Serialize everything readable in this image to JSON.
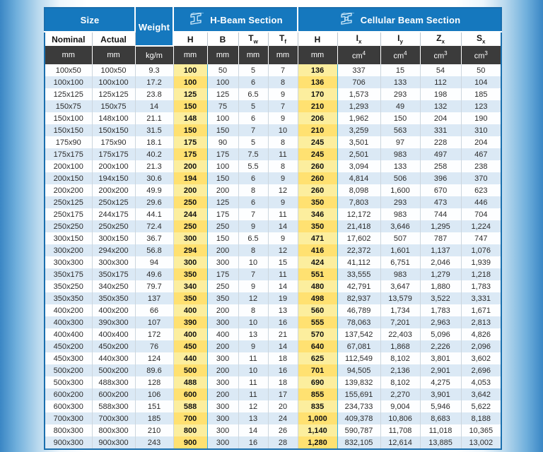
{
  "header": {
    "size_label": "Size",
    "weight_label": "Weight",
    "hbeam_label": "H-Beam Section",
    "cellular_label": "Cellular Beam Section",
    "hbeam_icon": "h-beam-icon",
    "cellular_icon": "cellular-beam-icon"
  },
  "columns": [
    {
      "id": "nominal",
      "label": "Nominal",
      "unit": "mm",
      "group": "size"
    },
    {
      "id": "actual",
      "label": "Actual",
      "unit": "mm",
      "group": "size"
    },
    {
      "id": "weight",
      "label": "Weight",
      "unit": "kg/m",
      "group": "weight"
    },
    {
      "id": "h_beam_h",
      "label": "H",
      "unit": "mm",
      "group": "hbeam",
      "highlight": true
    },
    {
      "id": "b",
      "label": "B",
      "unit": "mm",
      "group": "hbeam"
    },
    {
      "id": "tw",
      "label": "T",
      "sub": "w",
      "unit": "mm",
      "group": "hbeam"
    },
    {
      "id": "tf",
      "label": "T",
      "sub": "f",
      "unit": "mm",
      "group": "hbeam"
    },
    {
      "id": "cell_h",
      "label": "H",
      "unit": "mm",
      "group": "cellular",
      "highlight": true
    },
    {
      "id": "ix",
      "label": "I",
      "sub": "x",
      "unit": "cm",
      "unit_sup": "4",
      "group": "cellular"
    },
    {
      "id": "iy",
      "label": "I",
      "sub": "y",
      "unit": "cm",
      "unit_sup": "4",
      "group": "cellular"
    },
    {
      "id": "zx",
      "label": "Z",
      "sub": "x",
      "unit": "cm",
      "unit_sup": "3",
      "group": "cellular"
    },
    {
      "id": "sx",
      "label": "S",
      "sub": "x",
      "unit": "cm",
      "unit_sup": "3",
      "group": "cellular"
    }
  ],
  "rows": [
    [
      "100x50",
      "100x50",
      "9.3",
      "100",
      "50",
      "5",
      "7",
      "136",
      "337",
      "15",
      "54",
      "50"
    ],
    [
      "100x100",
      "100x100",
      "17.2",
      "100",
      "100",
      "6",
      "8",
      "136",
      "706",
      "133",
      "112",
      "104"
    ],
    [
      "125x125",
      "125x125",
      "23.8",
      "125",
      "125",
      "6.5",
      "9",
      "170",
      "1,573",
      "293",
      "198",
      "185"
    ],
    [
      "150x75",
      "150x75",
      "14",
      "150",
      "75",
      "5",
      "7",
      "210",
      "1,293",
      "49",
      "132",
      "123"
    ],
    [
      "150x100",
      "148x100",
      "21.1",
      "148",
      "100",
      "6",
      "9",
      "206",
      "1,962",
      "150",
      "204",
      "190"
    ],
    [
      "150x150",
      "150x150",
      "31.5",
      "150",
      "150",
      "7",
      "10",
      "210",
      "3,259",
      "563",
      "331",
      "310"
    ],
    [
      "175x90",
      "175x90",
      "18.1",
      "175",
      "90",
      "5",
      "8",
      "245",
      "3,501",
      "97",
      "228",
      "204"
    ],
    [
      "175x175",
      "175x175",
      "40.2",
      "175",
      "175",
      "7.5",
      "11",
      "245",
      "2,501",
      "983",
      "497",
      "467"
    ],
    [
      "200x100",
      "200x100",
      "21.3",
      "200",
      "100",
      "5.5",
      "8",
      "260",
      "3,094",
      "133",
      "258",
      "238"
    ],
    [
      "200x150",
      "194x150",
      "30.6",
      "194",
      "150",
      "6",
      "9",
      "260",
      "4,814",
      "506",
      "396",
      "370"
    ],
    [
      "200x200",
      "200x200",
      "49.9",
      "200",
      "200",
      "8",
      "12",
      "260",
      "8,098",
      "1,600",
      "670",
      "623"
    ],
    [
      "250x125",
      "250x125",
      "29.6",
      "250",
      "125",
      "6",
      "9",
      "350",
      "7,803",
      "293",
      "473",
      "446"
    ],
    [
      "250x175",
      "244x175",
      "44.1",
      "244",
      "175",
      "7",
      "11",
      "346",
      "12,172",
      "983",
      "744",
      "704"
    ],
    [
      "250x250",
      "250x250",
      "72.4",
      "250",
      "250",
      "9",
      "14",
      "350",
      "21,418",
      "3,646",
      "1,295",
      "1,224"
    ],
    [
      "300x150",
      "300x150",
      "36.7",
      "300",
      "150",
      "6.5",
      "9",
      "471",
      "17,602",
      "507",
      "787",
      "747"
    ],
    [
      "300x200",
      "294x200",
      "56.8",
      "294",
      "200",
      "8",
      "12",
      "416",
      "22,372",
      "1,601",
      "1,137",
      "1,076"
    ],
    [
      "300x300",
      "300x300",
      "94",
      "300",
      "300",
      "10",
      "15",
      "424",
      "41,112",
      "6,751",
      "2,046",
      "1,939"
    ],
    [
      "350x175",
      "350x175",
      "49.6",
      "350",
      "175",
      "7",
      "11",
      "551",
      "33,555",
      "983",
      "1,279",
      "1,218"
    ],
    [
      "350x250",
      "340x250",
      "79.7",
      "340",
      "250",
      "9",
      "14",
      "480",
      "42,791",
      "3,647",
      "1,880",
      "1,783"
    ],
    [
      "350x350",
      "350x350",
      "137",
      "350",
      "350",
      "12",
      "19",
      "498",
      "82,937",
      "13,579",
      "3,522",
      "3,331"
    ],
    [
      "400x200",
      "400x200",
      "66",
      "400",
      "200",
      "8",
      "13",
      "560",
      "46,789",
      "1,734",
      "1,783",
      "1,671"
    ],
    [
      "400x300",
      "390x300",
      "107",
      "390",
      "300",
      "10",
      "16",
      "555",
      "78,063",
      "7,201",
      "2,963",
      "2,813"
    ],
    [
      "400x400",
      "400x400",
      "172",
      "400",
      "400",
      "13",
      "21",
      "570",
      "137,542",
      "22,403",
      "5,096",
      "4,826"
    ],
    [
      "450x200",
      "450x200",
      "76",
      "450",
      "200",
      "9",
      "14",
      "640",
      "67,081",
      "1,868",
      "2,226",
      "2,096"
    ],
    [
      "450x300",
      "440x300",
      "124",
      "440",
      "300",
      "11",
      "18",
      "625",
      "112,549",
      "8,102",
      "3,801",
      "3,602"
    ],
    [
      "500x200",
      "500x200",
      "89.6",
      "500",
      "200",
      "10",
      "16",
      "701",
      "94,505",
      "2,136",
      "2,901",
      "2,696"
    ],
    [
      "500x300",
      "488x300",
      "128",
      "488",
      "300",
      "11",
      "18",
      "690",
      "139,832",
      "8,102",
      "4,275",
      "4,053"
    ],
    [
      "600x200",
      "600x200",
      "106",
      "600",
      "200",
      "11",
      "17",
      "855",
      "155,691",
      "2,270",
      "3,901",
      "3,642"
    ],
    [
      "600x300",
      "588x300",
      "151",
      "588",
      "300",
      "12",
      "20",
      "835",
      "234,733",
      "9,004",
      "5,946",
      "5,622"
    ],
    [
      "700x300",
      "700x300",
      "185",
      "700",
      "300",
      "13",
      "24",
      "1,000",
      "409,378",
      "10,806",
      "8,683",
      "8,188"
    ],
    [
      "800x300",
      "800x300",
      "210",
      "800",
      "300",
      "14",
      "26",
      "1,140",
      "590,787",
      "11,708",
      "11,018",
      "10,365"
    ],
    [
      "900x300",
      "900x300",
      "243",
      "900",
      "300",
      "16",
      "28",
      "1,280",
      "832,105",
      "12,614",
      "13,885",
      "13,002"
    ]
  ],
  "colors": {
    "header_blue": "#1578be",
    "unit_row_bg": "#3b3b3b",
    "stripe_white": "#fdfeff",
    "stripe_blue": "#dbe9f5",
    "highlight_pale": "#fcee9e",
    "highlight_gold": "#ffe171",
    "highlight_border": "#35b0e5",
    "table_border": "#1a6fae",
    "icon_stroke": "#c3e3f7"
  }
}
